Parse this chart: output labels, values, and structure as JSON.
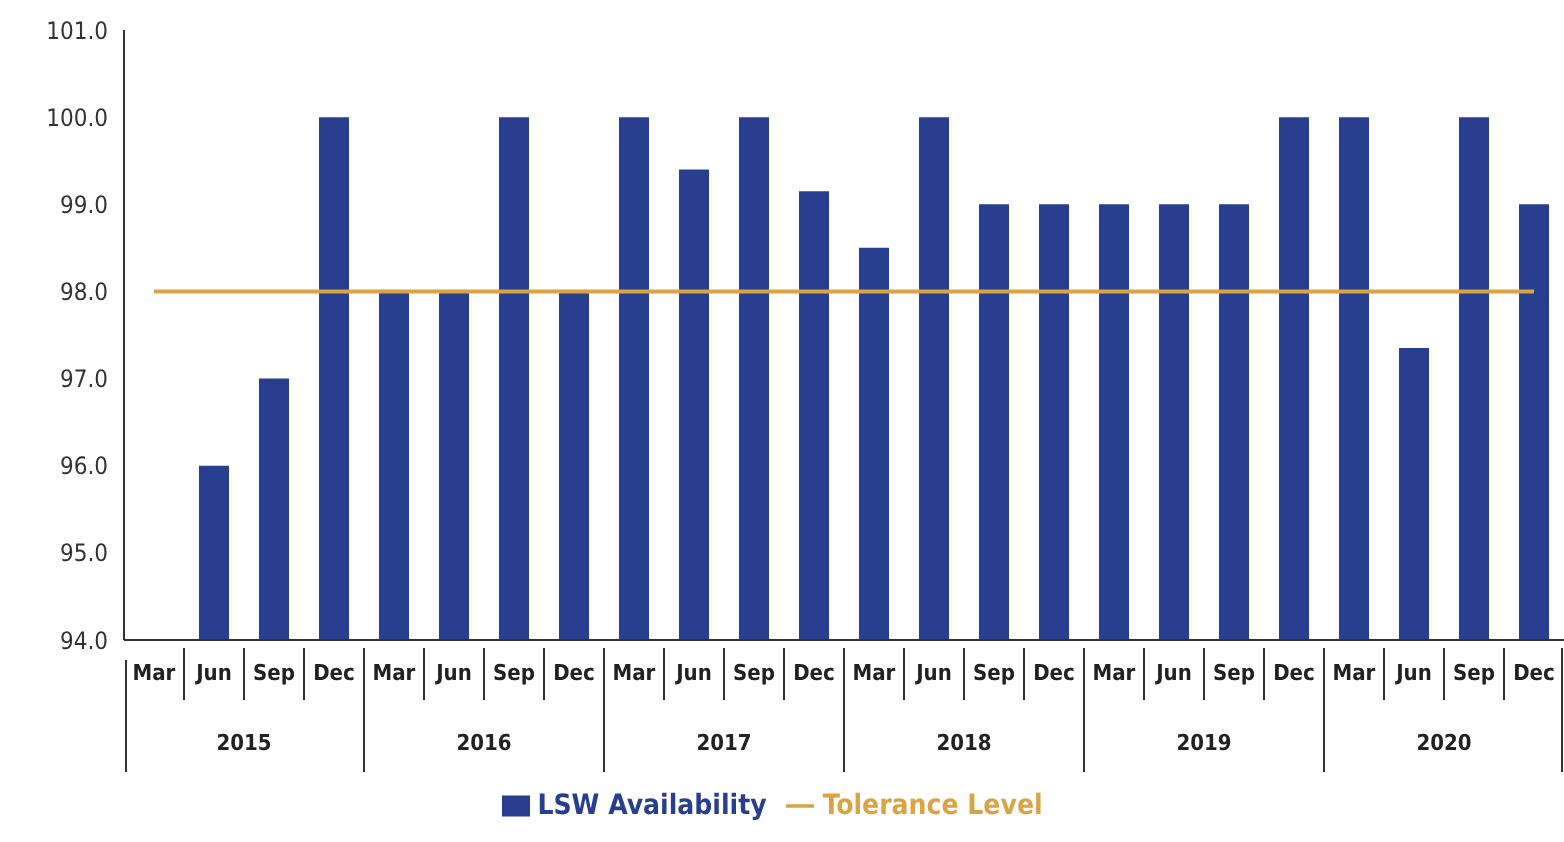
{
  "chart_data": {
    "type": "bar",
    "categories": [
      "Mar",
      "Jun",
      "Sep",
      "Dec",
      "Mar",
      "Jun",
      "Sep",
      "Dec",
      "Mar",
      "Jun",
      "Sep",
      "Dec",
      "Mar",
      "Jun",
      "Sep",
      "Dec",
      "Mar",
      "Jun",
      "Sep",
      "Dec",
      "Mar",
      "Jun",
      "Sep",
      "Dec"
    ],
    "series": [
      {
        "name": "LSW Availability",
        "color": "#283f8f",
        "values": [
          null,
          96.0,
          97.0,
          100.0,
          98.0,
          98.0,
          100.0,
          98.0,
          100.0,
          99.4,
          100.0,
          99.15,
          98.5,
          100.0,
          99.0,
          99.0,
          99.0,
          99.0,
          99.0,
          100.0,
          100.0,
          97.35,
          100.0,
          99.0
        ]
      },
      {
        "name": "Tolerance Level",
        "type": "line",
        "color": "#d9a443",
        "values": [
          98.0,
          98.0,
          98.0,
          98.0,
          98.0,
          98.0,
          98.0,
          98.0,
          98.0,
          98.0,
          98.0,
          98.0,
          98.0,
          98.0,
          98.0,
          98.0,
          98.0,
          98.0,
          98.0,
          98.0,
          98.0,
          98.0,
          98.0,
          98.0
        ]
      }
    ],
    "annotations": [
      "2015",
      "2016",
      "2017",
      "2018",
      "2019",
      "2020"
    ],
    "ylim": [
      94.0,
      101.0
    ],
    "yticks": [
      {
        "value": 94,
        "label": "94.0"
      },
      {
        "value": 95,
        "label": "95.0"
      },
      {
        "value": 96,
        "label": "96.0"
      },
      {
        "value": 97,
        "label": "97.0"
      },
      {
        "value": 98,
        "label": "98.0"
      },
      {
        "value": 99,
        "label": "99.0"
      },
      {
        "value": 100,
        "label": "100.0"
      },
      {
        "value": 101,
        "label": "101.0"
      }
    ],
    "grid": false,
    "legend": "bottom",
    "marker": "none",
    "line_style": "solid"
  }
}
